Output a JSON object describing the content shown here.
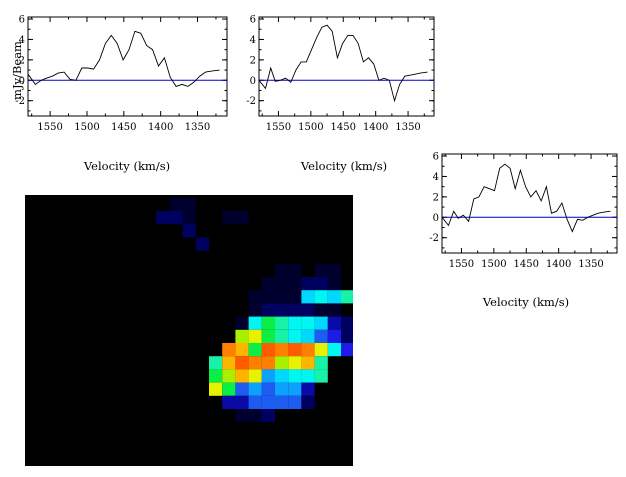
{
  "map": {
    "background": "#000000",
    "colormap": [
      "#000018",
      "#00002e",
      "#000060",
      "#0a0aa8",
      "#1c1ce6",
      "#1d5cf0",
      "#0ea0ff",
      "#00d8ff",
      "#00f6f0",
      "#18f2a8",
      "#0aee46",
      "#a8f000",
      "#e6f200",
      "#ffb400",
      "#ff8000",
      "#ff5c00"
    ],
    "pixels": [
      [
        2,
        9,
        1
      ],
      [
        3,
        9,
        1
      ],
      [
        1,
        10,
        2
      ],
      [
        2,
        10,
        2
      ],
      [
        3,
        10,
        1
      ],
      [
        3,
        11,
        2
      ],
      [
        6,
        10,
        1
      ],
      [
        7,
        10,
        1
      ],
      [
        4,
        12,
        2
      ],
      [
        10,
        14,
        1
      ],
      [
        11,
        14,
        1
      ],
      [
        9,
        15,
        1
      ],
      [
        10,
        15,
        1
      ],
      [
        11,
        15,
        1
      ],
      [
        8,
        16,
        1
      ],
      [
        9,
        16,
        1
      ],
      [
        10,
        16,
        1
      ],
      [
        11,
        16,
        1
      ],
      [
        8,
        17,
        1
      ],
      [
        9,
        17,
        2
      ],
      [
        10,
        17,
        2
      ],
      [
        11,
        17,
        2
      ],
      [
        12,
        17,
        2
      ],
      [
        13,
        17,
        1
      ],
      [
        14,
        17,
        1
      ],
      [
        7,
        18,
        1
      ],
      [
        8,
        18,
        8
      ],
      [
        9,
        18,
        10
      ],
      [
        10,
        18,
        9
      ],
      [
        11,
        18,
        8
      ],
      [
        12,
        18,
        8
      ],
      [
        13,
        18,
        7
      ],
      [
        14,
        18,
        3
      ],
      [
        15,
        18,
        2
      ],
      [
        7,
        19,
        11
      ],
      [
        8,
        19,
        12
      ],
      [
        9,
        19,
        10
      ],
      [
        10,
        19,
        9
      ],
      [
        11,
        19,
        8
      ],
      [
        12,
        19,
        7
      ],
      [
        13,
        19,
        5
      ],
      [
        14,
        19,
        4
      ],
      [
        15,
        19,
        2
      ],
      [
        6,
        20,
        14
      ],
      [
        7,
        20,
        13
      ],
      [
        8,
        20,
        10
      ],
      [
        9,
        20,
        13
      ],
      [
        10,
        20,
        14
      ],
      [
        11,
        20,
        15
      ],
      [
        12,
        20,
        14
      ],
      [
        13,
        20,
        12
      ],
      [
        14,
        20,
        8
      ],
      [
        15,
        20,
        4
      ],
      [
        5,
        21,
        9
      ],
      [
        6,
        21,
        13
      ],
      [
        7,
        21,
        15
      ],
      [
        8,
        21,
        14
      ],
      [
        9,
        21,
        14
      ],
      [
        10,
        21,
        11
      ],
      [
        11,
        21,
        12
      ],
      [
        12,
        21,
        13
      ],
      [
        13,
        21,
        9
      ],
      [
        5,
        22,
        10
      ],
      [
        6,
        22,
        11
      ],
      [
        7,
        22,
        13
      ],
      [
        8,
        22,
        12
      ],
      [
        9,
        22,
        6
      ],
      [
        10,
        22,
        7
      ],
      [
        11,
        22,
        8
      ],
      [
        12,
        22,
        8
      ],
      [
        13,
        22,
        9
      ],
      [
        5,
        23,
        12
      ],
      [
        6,
        23,
        10
      ],
      [
        7,
        23,
        5
      ],
      [
        8,
        23,
        6
      ],
      [
        9,
        23,
        5
      ],
      [
        10,
        23,
        6
      ],
      [
        11,
        23,
        6
      ],
      [
        12,
        23,
        3
      ],
      [
        6,
        24,
        3
      ],
      [
        7,
        24,
        3
      ],
      [
        8,
        24,
        5
      ],
      [
        9,
        24,
        5
      ],
      [
        10,
        24,
        5
      ],
      [
        11,
        24,
        5
      ],
      [
        12,
        24,
        2
      ],
      [
        7,
        25,
        1
      ],
      [
        8,
        25,
        1
      ],
      [
        9,
        25,
        2
      ],
      [
        12,
        15,
        2
      ],
      [
        13,
        15,
        2
      ],
      [
        14,
        15,
        1
      ],
      [
        12,
        16,
        7
      ],
      [
        13,
        16,
        8
      ],
      [
        14,
        16,
        7
      ],
      [
        15,
        16,
        9
      ],
      [
        16,
        16,
        10
      ],
      [
        13,
        14,
        1
      ],
      [
        14,
        14,
        1
      ],
      [
        9,
        20,
        15
      ],
      [
        10,
        20,
        14
      ]
    ]
  },
  "spectra": [
    {
      "xlabel": "Velocity (km/s)",
      "ylabel": "mJy/Beam",
      "y_ticks": [
        "6",
        "4",
        "2",
        "0",
        "-2"
      ],
      "x_ticks": [
        "1550",
        "1500",
        "1450",
        "1400",
        "1350"
      ],
      "baseline_color": "#0000cc",
      "chart_data": {
        "type": "line",
        "ylim": [
          -3.5,
          6.2
        ],
        "xlim": [
          1580,
          1310
        ],
        "x": [
          1580,
          1570,
          1562,
          1555,
          1547,
          1539,
          1531,
          1523,
          1515,
          1507,
          1499,
          1491,
          1483,
          1475,
          1467,
          1459,
          1451,
          1443,
          1435,
          1427,
          1419,
          1411,
          1403,
          1395,
          1387,
          1379,
          1371,
          1363,
          1355,
          1347,
          1339,
          1331,
          1320
        ],
        "y": [
          0.6,
          -0.4,
          0.0,
          0.2,
          0.4,
          0.7,
          0.8,
          0.1,
          0.0,
          1.2,
          1.2,
          1.1,
          2.0,
          3.6,
          4.4,
          3.6,
          2.0,
          3.0,
          4.8,
          4.6,
          3.4,
          3.0,
          1.4,
          2.2,
          0.3,
          -0.6,
          -0.4,
          -0.6,
          -0.2,
          0.4,
          0.8,
          0.9,
          1.0
        ]
      }
    },
    {
      "xlabel": "Velocity (km/s)",
      "ylabel": "",
      "y_ticks": [
        "6",
        "4",
        "2",
        "0",
        "-2"
      ],
      "x_ticks": [
        "1550",
        "1500",
        "1450",
        "1400",
        "1350"
      ],
      "baseline_color": "#0000cc",
      "chart_data": {
        "type": "line",
        "ylim": [
          -3.5,
          6.2
        ],
        "xlim": [
          1580,
          1310
        ],
        "x": [
          1580,
          1570,
          1562,
          1555,
          1547,
          1539,
          1531,
          1523,
          1515,
          1507,
          1499,
          1491,
          1483,
          1475,
          1467,
          1459,
          1451,
          1443,
          1435,
          1427,
          1419,
          1411,
          1403,
          1395,
          1387,
          1379,
          1371,
          1363,
          1355,
          1347,
          1339,
          1331,
          1320
        ],
        "y": [
          0.0,
          -0.8,
          1.2,
          -0.1,
          0.0,
          0.2,
          -0.2,
          1.0,
          1.8,
          1.8,
          3.0,
          4.2,
          5.2,
          5.4,
          4.8,
          2.2,
          3.6,
          4.4,
          4.4,
          3.6,
          1.8,
          2.2,
          1.6,
          0.0,
          0.2,
          0.0,
          -2.0,
          -0.4,
          0.4,
          0.5,
          0.6,
          0.7,
          0.8
        ]
      }
    },
    {
      "xlabel": "Velocity (km/s)",
      "ylabel": "",
      "y_ticks": [
        "6",
        "4",
        "2",
        "0",
        "-2"
      ],
      "x_ticks": [
        "1550",
        "1500",
        "1450",
        "1400",
        "1350"
      ],
      "baseline_color": "#0000cc",
      "chart_data": {
        "type": "line",
        "ylim": [
          -3.5,
          6.2
        ],
        "xlim": [
          1580,
          1310
        ],
        "x": [
          1580,
          1570,
          1562,
          1555,
          1547,
          1539,
          1531,
          1523,
          1515,
          1507,
          1499,
          1491,
          1483,
          1475,
          1467,
          1459,
          1451,
          1443,
          1435,
          1427,
          1419,
          1411,
          1403,
          1395,
          1387,
          1379,
          1371,
          1363,
          1355,
          1347,
          1339,
          1331,
          1320
        ],
        "y": [
          0.0,
          -0.8,
          0.6,
          -0.1,
          0.2,
          -0.4,
          1.8,
          2.0,
          3.0,
          2.8,
          2.6,
          4.8,
          5.2,
          4.8,
          2.8,
          4.6,
          3.0,
          2.0,
          2.6,
          1.6,
          3.0,
          0.4,
          0.6,
          1.4,
          -0.2,
          -1.4,
          -0.2,
          -0.3,
          0.0,
          0.2,
          0.4,
          0.5,
          0.6
        ]
      }
    }
  ]
}
